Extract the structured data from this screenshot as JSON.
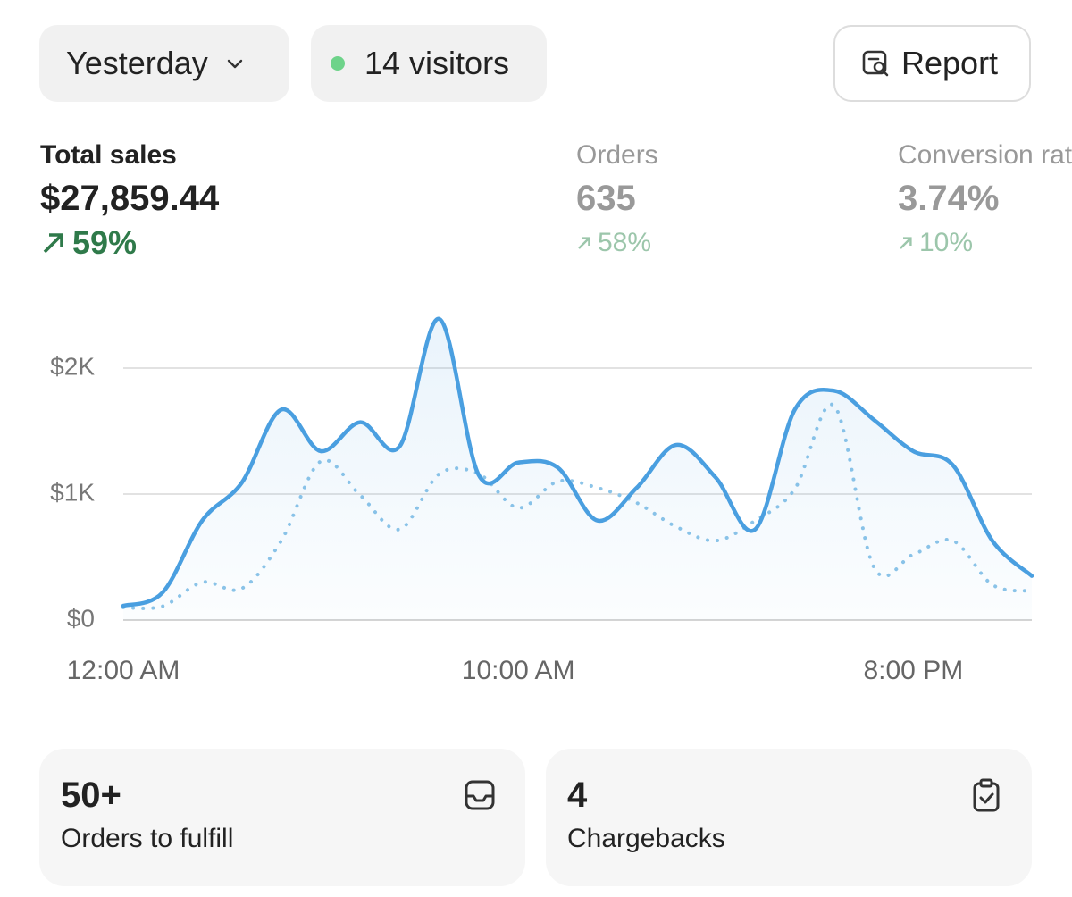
{
  "header": {
    "period": "Yesterday",
    "visitors": "14 visitors",
    "report": "Report"
  },
  "metrics": [
    {
      "label": "Total sales",
      "value": "$27,859.44",
      "change": "59%"
    },
    {
      "label": "Orders",
      "value": "635",
      "change": "58%"
    },
    {
      "label": "Conversion rate",
      "value": "3.74%",
      "change": "10%"
    }
  ],
  "chart_data": {
    "type": "line",
    "categories": [
      "12:00 AM",
      null,
      null,
      null,
      null,
      null,
      null,
      null,
      null,
      null,
      "10:00 AM",
      null,
      null,
      null,
      null,
      null,
      null,
      null,
      null,
      null,
      "8:00 PM",
      null,
      null,
      null
    ],
    "series": [
      {
        "color": "#4a9fe0",
        "line_style": "solid",
        "fill": true,
        "values": [
          113,
          220,
          790,
          1090,
          1670,
          1340,
          1570,
          1380,
          2390,
          1150,
          1250,
          1210,
          790,
          1050,
          1390,
          1130,
          720,
          1670,
          1820,
          1590,
          1340,
          1230,
          630,
          350
        ]
      },
      {
        "color": "#8cc4e8",
        "line_style": "dotted",
        "fill": false,
        "values": [
          100,
          110,
          300,
          250,
          630,
          1260,
          990,
          720,
          1160,
          1160,
          890,
          1100,
          1050,
          930,
          740,
          630,
          790,
          1040,
          1700,
          420,
          520,
          630,
          280,
          230
        ]
      }
    ],
    "ylim": [
      0,
      2450
    ],
    "yticks": [
      {
        "value": 0,
        "label": "$0"
      },
      {
        "value": 1000,
        "label": "$1K"
      },
      {
        "value": 2000,
        "label": "$2K"
      }
    ],
    "grid": true
  },
  "cards": [
    {
      "value": "50+",
      "label": "Orders to fulfill"
    },
    {
      "value": "4",
      "label": "Chargebacks"
    }
  ]
}
